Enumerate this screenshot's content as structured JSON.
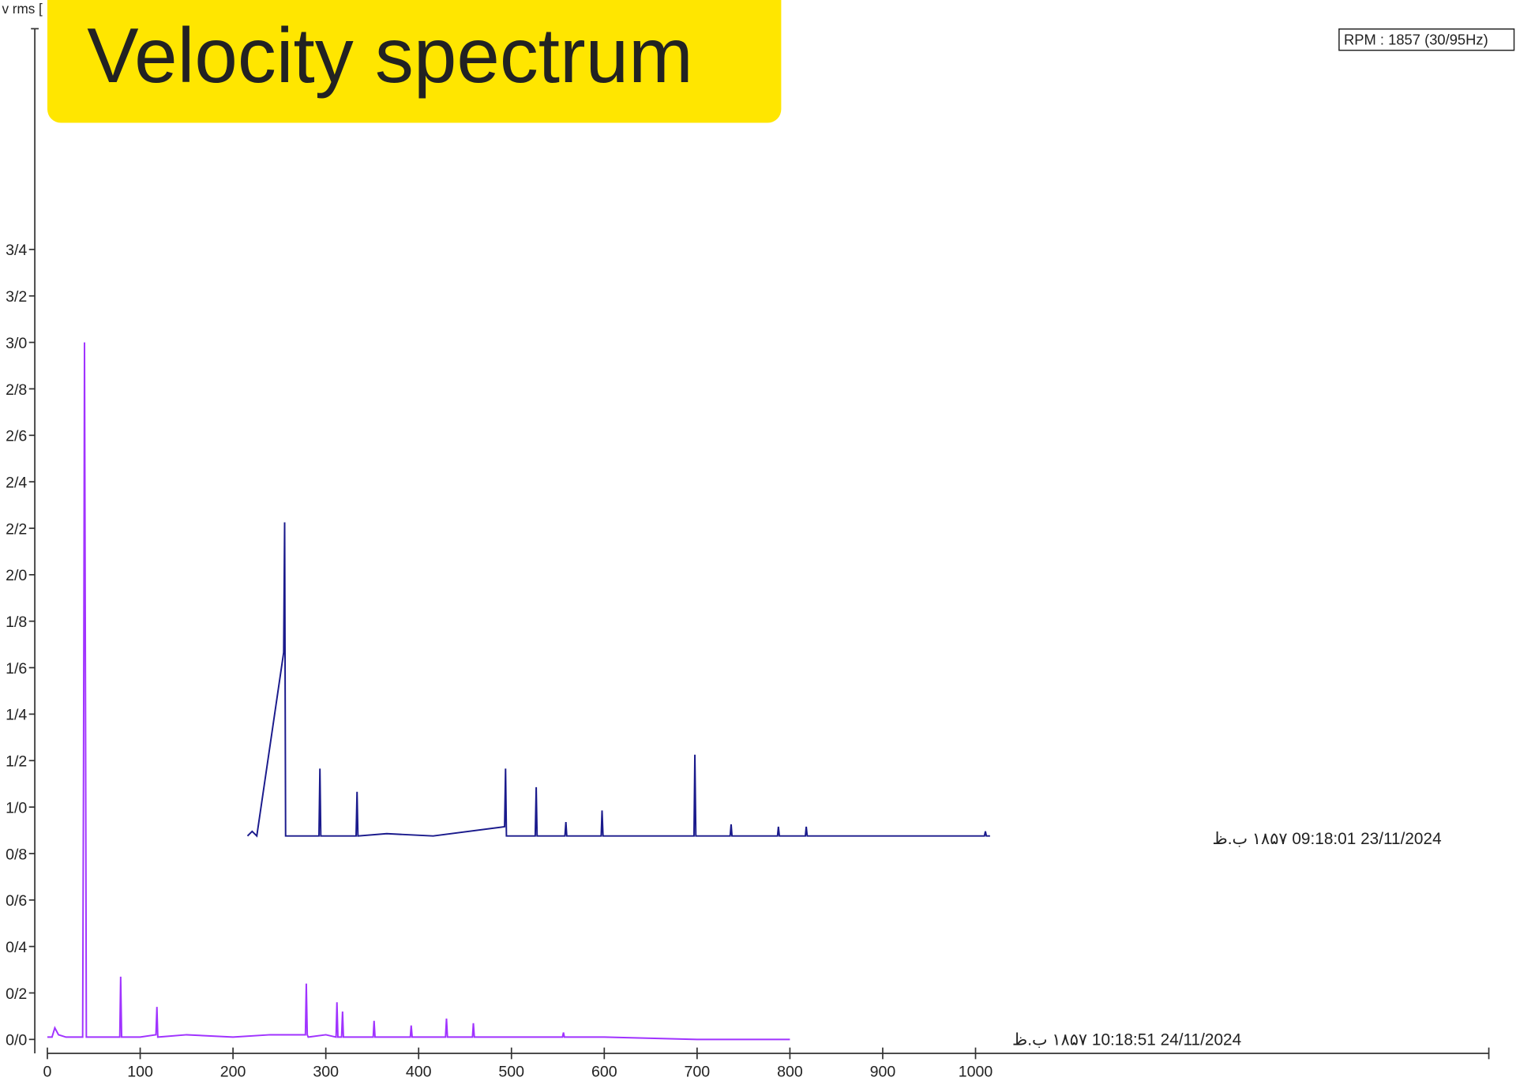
{
  "chart_data": {
    "type": "waterfall",
    "title": "Velocity spectrum",
    "y_label": "v rms [",
    "annotation": "RPM : 1857 (30/95Hz)",
    "xlim": [
      0,
      1553
    ],
    "ylim": [
      -0.06,
      4.35
    ],
    "xticks": [
      0,
      100,
      200,
      300,
      400,
      500,
      600,
      700,
      800,
      900,
      1000
    ],
    "yticks": [
      {
        "value": 0.0,
        "label": "0/0"
      },
      {
        "value": 0.2,
        "label": "0/2"
      },
      {
        "value": 0.4,
        "label": "0/4"
      },
      {
        "value": 0.6,
        "label": "0/6"
      },
      {
        "value": 0.8,
        "label": "0/8"
      },
      {
        "value": 1.0,
        "label": "1/0"
      },
      {
        "value": 1.2,
        "label": "1/2"
      },
      {
        "value": 1.4,
        "label": "1/4"
      },
      {
        "value": 1.6,
        "label": "1/6"
      },
      {
        "value": 1.8,
        "label": "1/8"
      },
      {
        "value": 2.0,
        "label": "2/0"
      },
      {
        "value": 2.2,
        "label": "2/2"
      },
      {
        "value": 2.4,
        "label": "2/4"
      },
      {
        "value": 2.6,
        "label": "2/6"
      },
      {
        "value": 2.8,
        "label": "2/8"
      },
      {
        "value": 3.0,
        "label": "3/0"
      },
      {
        "value": 3.2,
        "label": "3/2"
      },
      {
        "value": 3.4,
        "label": "3/4"
      }
    ],
    "series": [
      {
        "name": "24/11/2024 10:18:51 ۱۸۵۷ ب.ظ",
        "color": "#a033ff",
        "x": [
          0,
          5,
          8,
          12,
          20,
          38,
          39,
          40,
          41,
          42,
          60,
          78,
          79,
          80,
          100,
          117,
          118,
          119,
          150,
          200,
          240,
          278,
          279,
          280,
          281,
          300,
          311,
          312,
          313,
          317,
          318,
          319,
          351,
          352,
          353,
          391,
          392,
          393,
          429,
          430,
          431,
          458,
          459,
          460,
          500,
          555,
          556,
          557,
          600,
          700,
          800
        ],
        "values": [
          0.01,
          0.01,
          0.05,
          0.02,
          0.01,
          0.01,
          1.17,
          3.0,
          1.5,
          0.01,
          0.01,
          0.01,
          0.27,
          0.01,
          0.01,
          0.02,
          0.14,
          0.01,
          0.02,
          0.01,
          0.02,
          0.02,
          0.24,
          0.02,
          0.01,
          0.02,
          0.01,
          0.16,
          0.01,
          0.01,
          0.12,
          0.01,
          0.01,
          0.08,
          0.01,
          0.01,
          0.06,
          0.01,
          0.01,
          0.09,
          0.01,
          0.01,
          0.07,
          0.01,
          0.01,
          0.01,
          0.03,
          0.01,
          0.01,
          0.0,
          0.0
        ]
      },
      {
        "name": "23/11/2024 09:18:01 ۱۸۵۷ ب.ظ",
        "color": "#1a1a8c",
        "x": [
          0,
          5,
          10,
          39,
          40,
          41,
          50,
          77,
          78,
          79,
          100,
          117,
          118,
          119,
          150,
          200,
          277,
          278,
          279,
          310,
          311,
          312,
          342,
          343,
          344,
          381,
          382,
          383,
          450,
          481,
          482,
          483,
          520,
          521,
          522,
          571,
          572,
          573,
          601,
          602,
          603,
          700,
          794,
          795,
          796,
          800
        ],
        "values": [
          0.01,
          0.03,
          0.01,
          0.8,
          1.36,
          0.01,
          0.01,
          0.01,
          0.3,
          0.01,
          0.01,
          0.01,
          0.2,
          0.01,
          0.02,
          0.01,
          0.05,
          0.3,
          0.01,
          0.01,
          0.22,
          0.01,
          0.01,
          0.07,
          0.01,
          0.01,
          0.12,
          0.01,
          0.01,
          0.01,
          0.36,
          0.01,
          0.01,
          0.06,
          0.01,
          0.01,
          0.05,
          0.01,
          0.01,
          0.05,
          0.01,
          0.01,
          0.01,
          0.03,
          0.01,
          0.01
        ]
      }
    ]
  }
}
